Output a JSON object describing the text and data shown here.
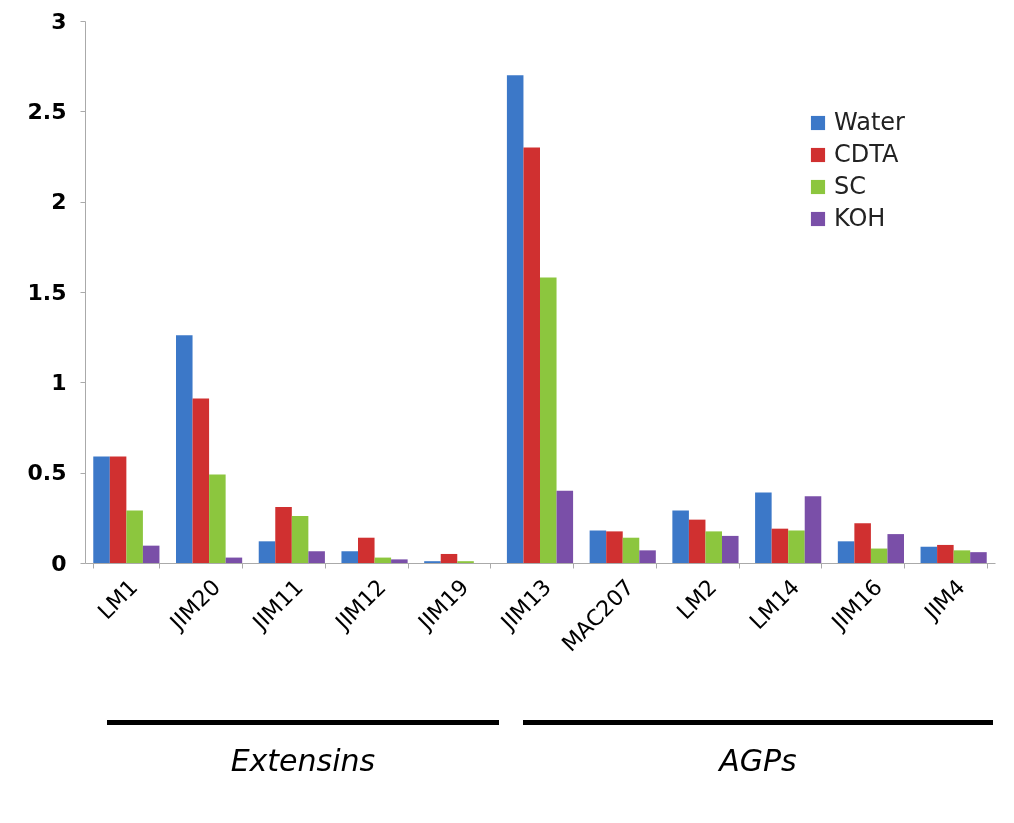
{
  "chart_data": {
    "type": "bar",
    "categories": [
      "LM1",
      "JIM20",
      "JIM11",
      "JIM12",
      "JIM19",
      "JIM13",
      "MAC207",
      "LM2",
      "LM14",
      "JIM16",
      "JIM4"
    ],
    "series": [
      {
        "name": "Water",
        "color": "#3c78c8",
        "values": [
          0.59,
          1.26,
          0.12,
          0.065,
          0.01,
          2.7,
          0.18,
          0.29,
          0.39,
          0.12,
          0.09
        ]
      },
      {
        "name": "CDTA",
        "color": "#d03030",
        "values": [
          0.59,
          0.91,
          0.31,
          0.14,
          0.05,
          2.3,
          0.175,
          0.24,
          0.19,
          0.22,
          0.1
        ]
      },
      {
        "name": "SC",
        "color": "#8cc63e",
        "values": [
          0.29,
          0.49,
          0.26,
          0.03,
          0.01,
          1.58,
          0.14,
          0.175,
          0.18,
          0.08,
          0.07
        ]
      },
      {
        "name": "KOH",
        "color": "#7a4fa8",
        "values": [
          0.096,
          0.03,
          0.065,
          0.02,
          0,
          0.4,
          0.07,
          0.15,
          0.37,
          0.16,
          0.06
        ]
      }
    ],
    "ylim": [
      0,
      3
    ],
    "yticks": [
      0,
      0.5,
      1,
      1.5,
      2,
      2.5,
      3
    ],
    "legend": "top right",
    "annotations": [
      "Extensins",
      "AGPs"
    ]
  }
}
